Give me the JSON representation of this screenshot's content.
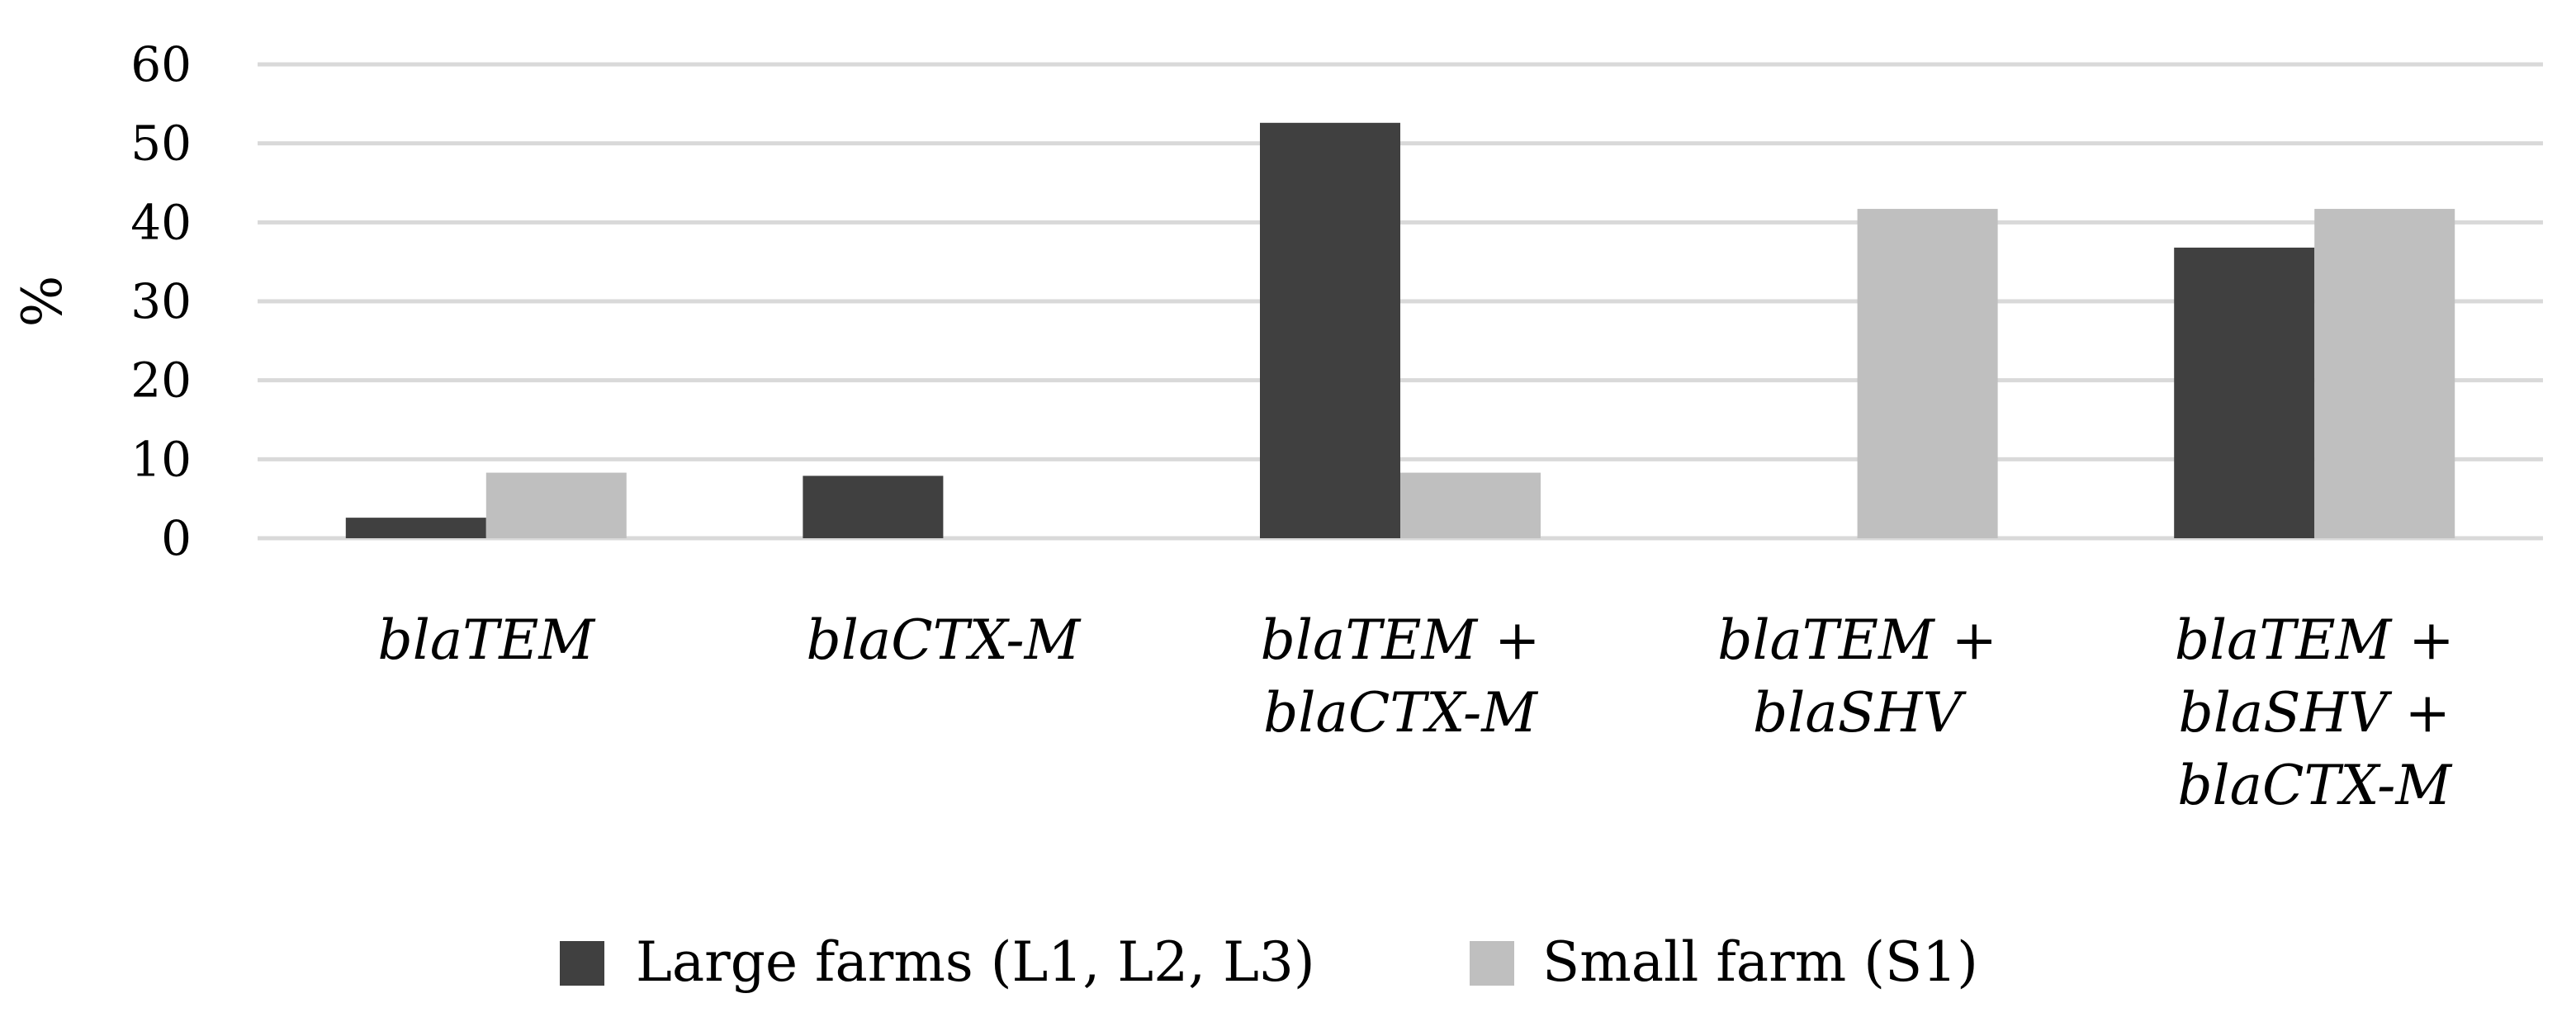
{
  "chart_data": {
    "type": "bar",
    "title": "",
    "xlabel": "",
    "ylabel": "%",
    "ylim": [
      0,
      60
    ],
    "yticks": [
      0,
      10,
      20,
      30,
      40,
      50,
      60
    ],
    "grid": true,
    "legend_position": "bottom",
    "categories": [
      [
        "blaTEM"
      ],
      [
        "blaCTX-M"
      ],
      [
        "blaTEM +",
        "blaCTX-M"
      ],
      [
        "blaTEM +",
        "blaSHV"
      ],
      [
        "blaTEM +",
        "blaSHV +",
        "blaCTX-M"
      ]
    ],
    "series": [
      {
        "name": "Large farms (L1, L2, L3)",
        "color": "#404040",
        "values": [
          2.6,
          7.9,
          52.6,
          0,
          36.8
        ]
      },
      {
        "name": "Small farm (S1)",
        "color": "#bfbfbf",
        "values": [
          8.3,
          0,
          8.3,
          41.7,
          41.7
        ]
      }
    ],
    "colors": {
      "grid": "#d9d9d9",
      "text": "#000000"
    }
  }
}
